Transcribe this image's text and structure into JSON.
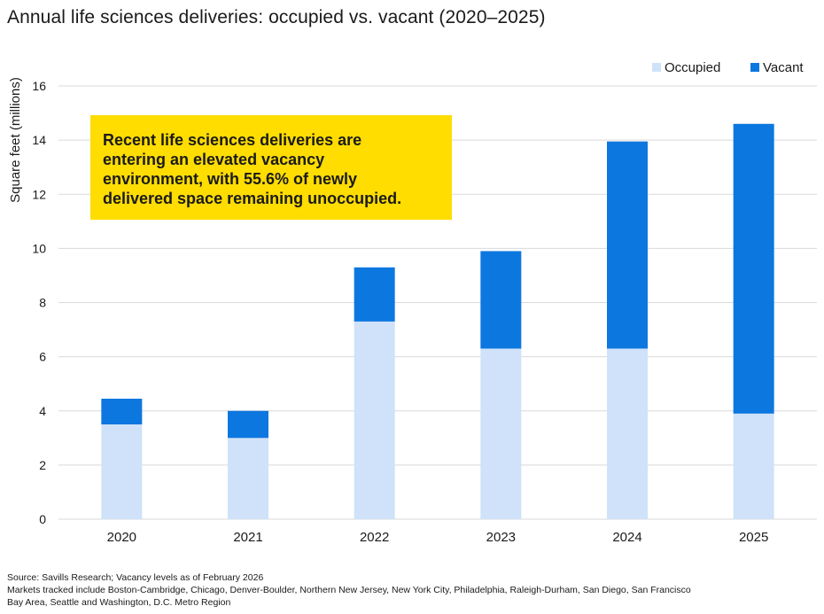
{
  "title": "Annual life sciences deliveries: occupied vs. vacant (2020–2025)",
  "colors": {
    "occupied": "#cfe2f9",
    "vacant": "#0d77e0",
    "grid": "#d9d9d9",
    "callout_bg": "#ffdd00"
  },
  "callout": {
    "lines": [
      "Recent life sciences deliveries are",
      "entering an elevated vacancy",
      "environment, with 55.6% of newly",
      "delivered space remaining unoccupied."
    ]
  },
  "chart_data": {
    "type": "bar",
    "stacked": true,
    "categories": [
      "2020",
      "2021",
      "2022",
      "2023",
      "2024",
      "2025"
    ],
    "series": [
      {
        "name": "Occupied",
        "values": [
          3.5,
          3.0,
          7.3,
          6.3,
          6.3,
          3.9
        ]
      },
      {
        "name": "Vacant",
        "values": [
          0.95,
          1.0,
          2.0,
          3.6,
          7.65,
          10.7
        ]
      }
    ],
    "ylabel": "Square feet (millions)",
    "xlabel": "",
    "ylim": [
      0,
      16
    ],
    "yticks": [
      0,
      2,
      4,
      6,
      8,
      10,
      12,
      14,
      16
    ],
    "grid": true,
    "legend_position": "top-right"
  },
  "footer": {
    "source": "Source: Savills Research; Vacancy levels as of February 2026",
    "markets_line1": "Markets tracked include Boston-Cambridge, Chicago, Denver-Boulder, Northern New Jersey, New York City, Philadelphia, Raleigh-Durham, San Diego, San Francisco",
    "markets_line2": "Bay Area, Seattle and Washington, D.C. Metro Region"
  }
}
